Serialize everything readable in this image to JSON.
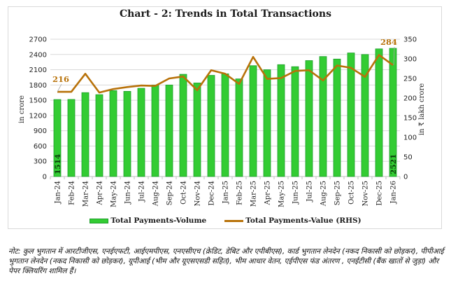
{
  "chart_data": {
    "type": "bar+line",
    "title": "Chart - 2: Trends in Total Transactions",
    "categories": [
      "Jan-24",
      "Feb-24",
      "Mar-24",
      "Apr-24",
      "May-24",
      "Jun-24",
      "Jul-24",
      "Aug-24",
      "Sep-24",
      "Oct-24",
      "Nov-24",
      "Dec-24",
      "Jan-25",
      "Feb-25",
      "Mar-25",
      "Apr-25",
      "May-25",
      "Jun-25",
      "Jul-25",
      "Aug-25",
      "Sep-25",
      "Oct-25",
      "Nov-25",
      "Dec-25",
      "Jan-26"
    ],
    "series": [
      {
        "name": "Total Payments-Volume",
        "type": "bar",
        "axis": "left",
        "color": "#33cc33",
        "values": [
          1514,
          1516,
          1650,
          1610,
          1690,
          1675,
          1735,
          1800,
          1800,
          2010,
          1840,
          1990,
          2020,
          1920,
          2180,
          2100,
          2200,
          2160,
          2280,
          2360,
          2310,
          2430,
          2400,
          2510,
          2521
        ],
        "labeled_points": {
          "Jan-24": "1514",
          "Jan-26": "2521"
        }
      },
      {
        "name": "Total Payments-Value (RHS)",
        "type": "line",
        "axis": "right",
        "color": "#b8720a",
        "values": [
          216,
          216,
          262,
          214,
          223,
          228,
          232,
          231,
          250,
          255,
          220,
          271,
          262,
          236,
          305,
          249,
          251,
          269,
          271,
          245,
          283,
          277,
          254,
          310,
          284
        ],
        "labeled_points": {
          "Jan-24": "216",
          "Jan-26": "284"
        }
      }
    ],
    "ylabel": "in crore",
    "y2label": "in ₹ lakh crore",
    "ylim": [
      0,
      2700
    ],
    "yticks": [
      0,
      300,
      600,
      900,
      1200,
      1500,
      1800,
      2100,
      2400,
      2700
    ],
    "y2lim": [
      0,
      350
    ],
    "y2ticks": [
      0,
      50,
      100,
      150,
      200,
      250,
      300,
      350
    ],
    "grid": true,
    "legend_position": "bottom"
  },
  "legend": {
    "volume": "Total Payments-Volume",
    "value": "Total Payments-Value (RHS)"
  },
  "note": "नोट: कुल भुगतान में आरटीजीएस, एनईएफटी, आईएमपीएस, एनएसीएच (क्रेडिट, डेबिट और एपीबीएस), कार्ड भुगतान लेनदेन (नकद निकासी को छोड़कर), पीपीआई भुगतान लेनदेन (नकद निकासी को छोड़कर), यूपीआई (भीम और यूएसएसडी सहित), भीम आधार वेतन, एईपीएस फंड अंतरण , एनईटीसी (बैंक खातों से जुड़ा) और पेपर क्लियरिंग शामिल हैं।"
}
